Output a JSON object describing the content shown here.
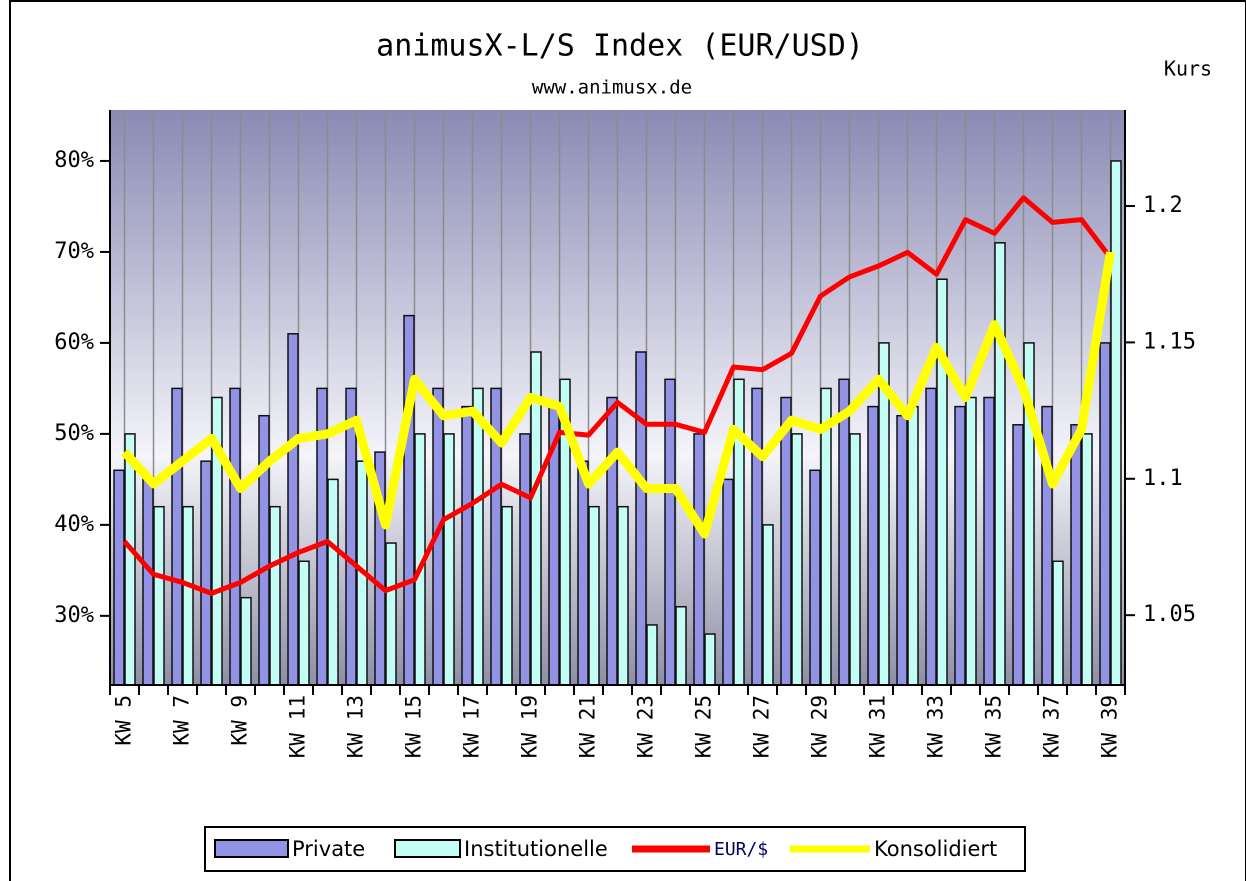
{
  "chart_data": {
    "type": "bar",
    "title": "animusX-L/S Index (EUR/USD)",
    "subtitle": "www.animusx.de",
    "y2_label": "Kurs",
    "categories": [
      "KW 5",
      null,
      "KW 7",
      null,
      "KW 9",
      null,
      "KW 11",
      null,
      "KW 13",
      null,
      "KW 15",
      null,
      "KW 17",
      null,
      "KW 19",
      null,
      "KW 21",
      null,
      "KW 23",
      null,
      "KW 25",
      null,
      "KW 27",
      null,
      "KW 29",
      null,
      "KW 31",
      null,
      "KW 33",
      null,
      "KW 35",
      null,
      "KW 37",
      null,
      "KW 39"
    ],
    "series": [
      {
        "name": "Private",
        "type": "bar",
        "color": "#9393e6",
        "values": [
          46,
          45,
          55,
          47,
          55,
          52,
          61,
          55,
          55,
          48,
          63,
          55,
          53,
          55,
          50,
          53,
          47,
          54,
          59,
          56,
          50,
          45,
          55,
          54,
          46,
          56,
          53,
          52,
          55,
          53,
          54,
          51,
          53,
          51,
          60
        ]
      },
      {
        "name": "Institutionelle",
        "type": "bar",
        "color": "#c4fcf6",
        "values": [
          50,
          42,
          42,
          54,
          32,
          42,
          36,
          45,
          47,
          38,
          50,
          50,
          55,
          42,
          59,
          56,
          42,
          42,
          29,
          31,
          28,
          56,
          40,
          50,
          55,
          50,
          60,
          53,
          67,
          54,
          71,
          60,
          36,
          50,
          80
        ]
      },
      {
        "name": "EUR/$",
        "type": "line",
        "axis": "y2",
        "color": "#ff0000",
        "values": [
          1.077,
          1.065,
          1.062,
          1.058,
          1.062,
          1.068,
          1.073,
          1.077,
          1.068,
          1.059,
          1.063,
          1.085,
          1.091,
          1.098,
          1.093,
          1.117,
          1.116,
          1.128,
          1.12,
          1.12,
          1.117,
          1.141,
          1.14,
          1.146,
          1.167,
          1.174,
          1.178,
          1.183,
          1.175,
          1.195,
          1.19,
          1.203,
          1.194,
          1.195,
          1.181
        ]
      },
      {
        "name": "Konsolidiert",
        "type": "line",
        "color": "#ffff00",
        "values": [
          48,
          44.5,
          47,
          49.5,
          44,
          47,
          49.5,
          50,
          51.5,
          40,
          56,
          52,
          52.5,
          49,
          54,
          53,
          44.5,
          48,
          44,
          44,
          39,
          50.5,
          47.5,
          51.5,
          50.5,
          52.5,
          56,
          52,
          59.5,
          54,
          62,
          55,
          44.5,
          50.5,
          70
        ]
      }
    ],
    "ylim": [
      22.4,
      85.6
    ],
    "yticks": [
      {
        "value": 30,
        "label": "30%"
      },
      {
        "value": 40,
        "label": "40%"
      },
      {
        "value": 50,
        "label": "50%"
      },
      {
        "value": 60,
        "label": "60%"
      },
      {
        "value": 70,
        "label": "70%"
      },
      {
        "value": 80,
        "label": "80%"
      }
    ],
    "y2lim": [
      1.0244,
      1.2352
    ],
    "y2ticks": [
      1.05,
      1.1,
      1.15,
      1.2
    ]
  }
}
